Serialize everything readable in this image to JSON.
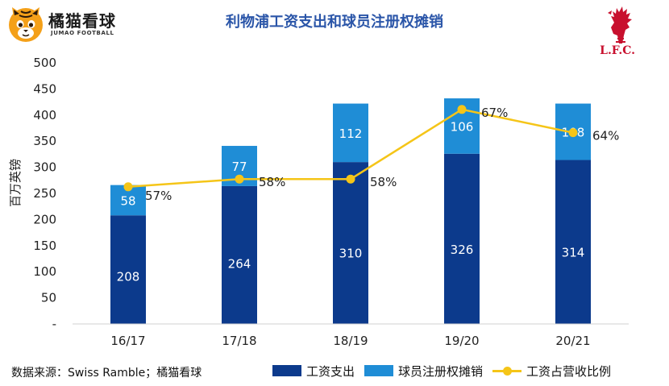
{
  "brand": {
    "name": "橘猫看球",
    "subtitle": "JUMAO FOOTBALL",
    "icon": "orange-cat-icon"
  },
  "club": {
    "name": "L.F.C.",
    "icon": "liver-bird-icon",
    "color": "#c8102e"
  },
  "source_note": "数据来源：Swiss Ramble；橘猫看球",
  "chart_data": {
    "type": "bar",
    "stacked": true,
    "title": "利物浦工资支出和球员注册权摊销",
    "xlabel": "",
    "ylabel": "百万英镑",
    "ylim": [
      0,
      500
    ],
    "ytick_step": 50,
    "ytick_labels": [
      "-",
      "50",
      "100",
      "150",
      "200",
      "250",
      "300",
      "350",
      "400",
      "450",
      "500"
    ],
    "categories": [
      "16/17",
      "17/18",
      "18/19",
      "19/20",
      "20/21"
    ],
    "series": [
      {
        "name": "工资支出",
        "kind": "bar",
        "color": "#0c3a8c",
        "values": [
          208,
          264,
          310,
          326,
          314
        ]
      },
      {
        "name": "球员注册权摊销",
        "kind": "bar",
        "color": "#1f8dd6",
        "values": [
          58,
          77,
          112,
          106,
          108
        ]
      },
      {
        "name": "工资占营收比例",
        "kind": "line",
        "color": "#f5c518",
        "values": [
          57,
          58,
          58,
          67,
          64
        ],
        "unit": "%"
      }
    ],
    "grid": false,
    "legend_position": "bottom-right"
  }
}
